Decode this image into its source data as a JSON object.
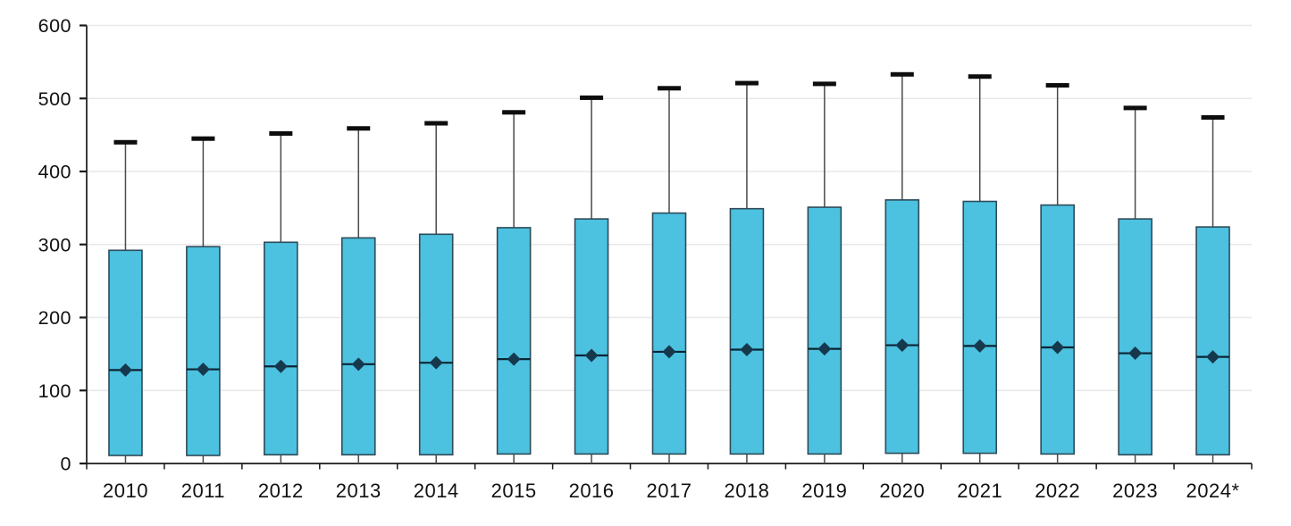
{
  "chart_data": {
    "type": "boxplot",
    "title": "",
    "xlabel": "",
    "ylabel": "",
    "ylim": [
      0,
      600
    ],
    "yticks": [
      0,
      100,
      200,
      300,
      400,
      500,
      600
    ],
    "grid": true,
    "legend": "none",
    "categories": [
      "2010",
      "2011",
      "2012",
      "2013",
      "2014",
      "2015",
      "2016",
      "2017",
      "2018",
      "2019",
      "2020",
      "2021",
      "2022",
      "2023",
      "2024*"
    ],
    "boxes": [
      {
        "category": "2010",
        "min": 0,
        "q1": 11,
        "median": 128,
        "q3": 292,
        "max": 440
      },
      {
        "category": "2011",
        "min": 0,
        "q1": 11,
        "median": 129,
        "q3": 297,
        "max": 445
      },
      {
        "category": "2012",
        "min": 0,
        "q1": 12,
        "median": 133,
        "q3": 303,
        "max": 452
      },
      {
        "category": "2013",
        "min": 0,
        "q1": 12,
        "median": 136,
        "q3": 309,
        "max": 459
      },
      {
        "category": "2014",
        "min": 0,
        "q1": 12,
        "median": 138,
        "q3": 314,
        "max": 466
      },
      {
        "category": "2015",
        "min": 0,
        "q1": 13,
        "median": 143,
        "q3": 323,
        "max": 481
      },
      {
        "category": "2016",
        "min": 0,
        "q1": 13,
        "median": 148,
        "q3": 335,
        "max": 501
      },
      {
        "category": "2017",
        "min": 0,
        "q1": 13,
        "median": 153,
        "q3": 343,
        "max": 514
      },
      {
        "category": "2018",
        "min": 0,
        "q1": 13,
        "median": 156,
        "q3": 349,
        "max": 521
      },
      {
        "category": "2019",
        "min": 0,
        "q1": 13,
        "median": 157,
        "q3": 351,
        "max": 520
      },
      {
        "category": "2020",
        "min": 0,
        "q1": 14,
        "median": 162,
        "q3": 361,
        "max": 533
      },
      {
        "category": "2021",
        "min": 0,
        "q1": 14,
        "median": 161,
        "q3": 359,
        "max": 530
      },
      {
        "category": "2022",
        "min": 0,
        "q1": 13,
        "median": 159,
        "q3": 354,
        "max": 518
      },
      {
        "category": "2023",
        "min": 0,
        "q1": 12,
        "median": 151,
        "q3": 335,
        "max": 487
      },
      {
        "category": "2024*",
        "min": 0,
        "q1": 12,
        "median": 146,
        "q3": 324,
        "max": 474
      }
    ],
    "colors": {
      "box_fill": "#4CC1E0",
      "box_border": "#2E4B58",
      "median_line": "#0B2433",
      "diamond_marker": "#16384D",
      "whisker_line": "#4A4A4A",
      "whisker_cap": "#0D0D0D",
      "gridline": "#E8E8E8",
      "axis": "#1A1A1A",
      "tick_text": "#111111"
    }
  }
}
